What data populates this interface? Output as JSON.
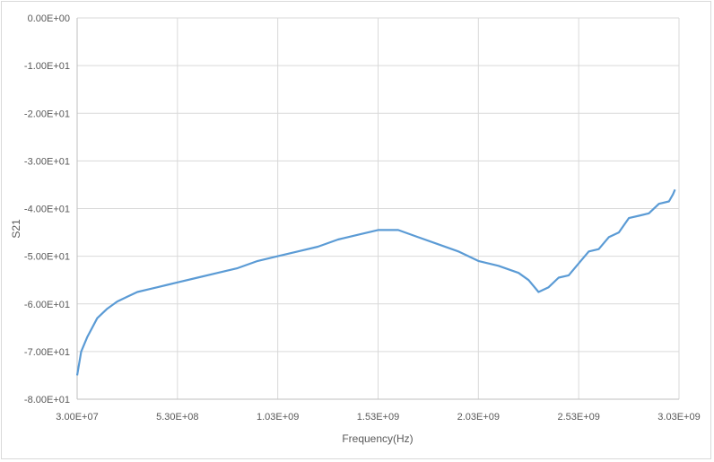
{
  "chart_data": {
    "type": "line",
    "title": "",
    "xlabel": "Frequency(Hz)",
    "ylabel": "S21",
    "xlim": [
      30000000,
      3030000000
    ],
    "ylim": [
      -80,
      0
    ],
    "grid": true,
    "legend": "none",
    "x_ticks": [
      "3.00E+07",
      "5.30E+08",
      "1.03E+09",
      "1.53E+09",
      "2.03E+09",
      "2.53E+09",
      "3.03E+09"
    ],
    "x_tick_values": [
      30000000,
      530000000,
      1030000000,
      1530000000,
      2030000000,
      2530000000,
      3030000000
    ],
    "y_ticks": [
      "0.00E+00",
      "-1.00E+01",
      "-2.00E+01",
      "-3.00E+01",
      "-4.00E+01",
      "-5.00E+01",
      "-6.00E+01",
      "-7.00E+01",
      "-8.00E+01"
    ],
    "y_tick_values": [
      0,
      -10,
      -20,
      -30,
      -40,
      -50,
      -60,
      -70,
      -80
    ],
    "series_color": "#5b9bd5",
    "series": [
      {
        "x": [
          30000000,
          50000000,
          80000000,
          130000000,
          180000000,
          230000000,
          280000000,
          330000000,
          380000000,
          430000000,
          480000000,
          530000000,
          630000000,
          730000000,
          830000000,
          930000000,
          1030000000,
          1130000000,
          1230000000,
          1330000000,
          1430000000,
          1530000000,
          1630000000,
          1730000000,
          1830000000,
          1930000000,
          2030000000,
          2130000000,
          2230000000,
          2280000000,
          2330000000,
          2380000000,
          2430000000,
          2480000000,
          2530000000,
          2580000000,
          2630000000,
          2680000000,
          2730000000,
          2780000000,
          2830000000,
          2880000000,
          2930000000,
          2980000000,
          3000000000,
          3010000000
        ],
        "y": [
          -75,
          -70,
          -67,
          -63,
          -61,
          -59.5,
          -58.5,
          -57.5,
          -57,
          -56.5,
          -56,
          -55.5,
          -54.5,
          -53.5,
          -52.5,
          -51,
          -50,
          -49,
          -48,
          -46.5,
          -45.5,
          -44.5,
          -44.5,
          -46,
          -47.5,
          -49,
          -51,
          -52,
          -53.5,
          -55,
          -57.5,
          -56.5,
          -54.5,
          -54,
          -51.5,
          -49,
          -48.5,
          -46,
          -45,
          -42,
          -41.5,
          -41,
          -39,
          -38.5,
          -37,
          -36
        ]
      }
    ]
  }
}
